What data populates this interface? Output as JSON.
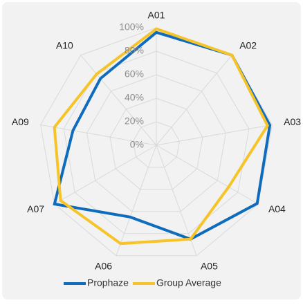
{
  "chart_data": {
    "type": "radar",
    "categories": [
      "A01",
      "A02",
      "A03",
      "A04",
      "A05",
      "A06",
      "A07",
      "A09",
      "A10"
    ],
    "series": [
      {
        "name": "Prophaze",
        "color": "#0f6cbd",
        "values": [
          96,
          100,
          98,
          99,
          85,
          65,
          100,
          72,
          74
        ]
      },
      {
        "name": "Group Average",
        "color": "#f6c428",
        "values": [
          99,
          100,
          96,
          71,
          85,
          89,
          94,
          88,
          79
        ]
      }
    ],
    "rlim": [
      0,
      100
    ],
    "rticks": [
      {
        "value": 0,
        "label": "0%"
      },
      {
        "value": 20,
        "label": "20%"
      },
      {
        "value": 40,
        "label": "40%"
      },
      {
        "value": 60,
        "label": "60%"
      },
      {
        "value": 80,
        "label": "80%"
      },
      {
        "value": 100,
        "label": "100%"
      }
    ],
    "grid": true,
    "legend": "bottom"
  }
}
